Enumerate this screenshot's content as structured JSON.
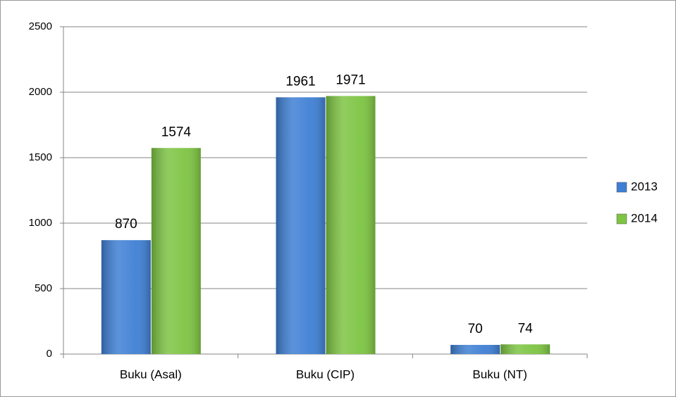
{
  "chart_data": {
    "type": "bar",
    "categories": [
      "Buku (Asal)",
      "Buku (CIP)",
      "Buku (NT)"
    ],
    "series": [
      {
        "name": "2013",
        "color": "#3f7fd4",
        "values": [
          870,
          1961,
          70
        ]
      },
      {
        "name": "2014",
        "color": "#7dc443",
        "values": [
          1574,
          1971,
          74
        ]
      }
    ],
    "ylim": [
      0,
      2500
    ],
    "yticks": [
      0,
      500,
      1000,
      1500,
      2000,
      2500
    ],
    "grid": true,
    "legend": "right"
  }
}
